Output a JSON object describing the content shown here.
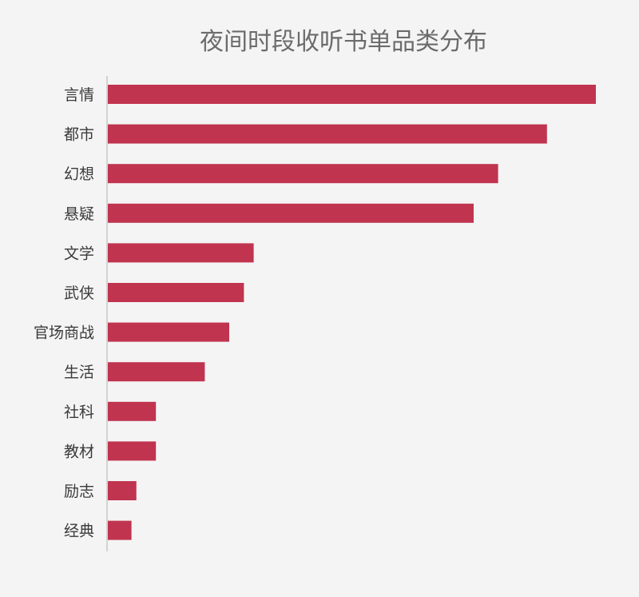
{
  "chart_data": {
    "type": "bar",
    "orientation": "horizontal",
    "title": "夜间时段收听书单品类分布",
    "categories": [
      "言情",
      "都市",
      "幻想",
      "悬疑",
      "文学",
      "武侠",
      "官场商战",
      "生活",
      "社科",
      "教材",
      "励志",
      "经典"
    ],
    "values": [
      100,
      90,
      80,
      75,
      30,
      28,
      25,
      20,
      10,
      10,
      6,
      5
    ],
    "xlim": [
      0,
      100
    ],
    "xlabel": "",
    "ylabel": "",
    "grid": false,
    "legend": "none",
    "bar_color": "#c0344f",
    "axis_color": "#c8c8c8"
  }
}
